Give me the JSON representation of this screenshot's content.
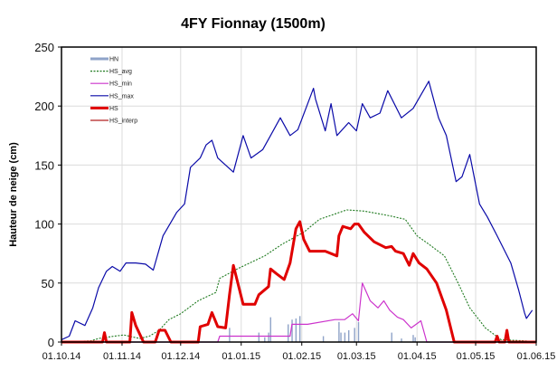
{
  "chart_data": {
    "type": "line",
    "title": "4FY Fionnay (1500m)",
    "xlabel": "",
    "ylabel": "Hauteur de neige (cm)",
    "xlim": [
      "01.10.14",
      "01.06.15"
    ],
    "ylim": [
      0,
      250
    ],
    "x_ticks": [
      "01.10.14",
      "01.11.14",
      "01.12.14",
      "01.01.15",
      "01.02.15",
      "01.03.15",
      "01.04.15",
      "01.05.15",
      "01.06.15"
    ],
    "y_ticks": [
      0,
      50,
      100,
      150,
      200,
      250
    ],
    "grid": true,
    "legend_position": "top-left",
    "series": [
      {
        "name": "HN",
        "style": "bar",
        "color": "#8fa3c8",
        "points": [
          [
            "26.12.14",
            12
          ],
          [
            "10.01.15",
            8
          ],
          [
            "13.01.15",
            4
          ],
          [
            "15.01.15",
            8
          ],
          [
            "16.01.15",
            21
          ],
          [
            "25.01.15",
            15
          ],
          [
            "27.01.15",
            19
          ],
          [
            "29.01.15",
            20
          ],
          [
            "31.01.15",
            22
          ],
          [
            "12.02.15",
            5
          ],
          [
            "20.02.15",
            17
          ],
          [
            "21.02.15",
            8
          ],
          [
            "23.02.15",
            8
          ],
          [
            "25.02.15",
            10
          ],
          [
            "28.02.15",
            12
          ],
          [
            "02.03.15",
            17
          ],
          [
            "19.03.15",
            8
          ],
          [
            "24.03.15",
            3
          ],
          [
            "30.03.15",
            6
          ],
          [
            "31.03.15",
            4
          ]
        ]
      },
      {
        "name": "HS_avg",
        "style": "dotted",
        "color": "#1f7a1f",
        "points": [
          [
            "01.10.14",
            0
          ],
          [
            "16.10.14",
            1
          ],
          [
            "20.10.14",
            3
          ],
          [
            "28.10.14",
            5
          ],
          [
            "02.11.14",
            6
          ],
          [
            "10.11.14",
            3
          ],
          [
            "15.11.14",
            5
          ],
          [
            "20.11.14",
            10
          ],
          [
            "25.11.14",
            19
          ],
          [
            "01.12.14",
            24
          ],
          [
            "10.12.14",
            35
          ],
          [
            "19.12.14",
            42
          ],
          [
            "21.12.14",
            54
          ],
          [
            "30.12.14",
            62
          ],
          [
            "13.01.15",
            73
          ],
          [
            "22.01.15",
            83
          ],
          [
            "02.02.15",
            93
          ],
          [
            "10.02.15",
            104
          ],
          [
            "24.02.15",
            112
          ],
          [
            "05.03.15",
            111
          ],
          [
            "18.03.15",
            107
          ],
          [
            "26.03.15",
            104
          ],
          [
            "01.04.15",
            90
          ],
          [
            "07.04.15",
            83
          ],
          [
            "15.04.15",
            73
          ],
          [
            "22.04.15",
            50
          ],
          [
            "28.04.15",
            29
          ],
          [
            "06.05.15",
            12
          ],
          [
            "14.05.15",
            2
          ],
          [
            "26.05.15",
            1
          ],
          [
            "01.06.15",
            0
          ]
        ]
      },
      {
        "name": "HS_min",
        "style": "line",
        "color": "#cc33cc",
        "points": [
          [
            "01.10.14",
            0
          ],
          [
            "20.12.14",
            0
          ],
          [
            "21.12.14",
            5
          ],
          [
            "26.01.15",
            5
          ],
          [
            "27.01.15",
            15
          ],
          [
            "04.02.15",
            15
          ],
          [
            "18.02.15",
            19
          ],
          [
            "23.02.15",
            19
          ],
          [
            "27.02.15",
            24
          ],
          [
            "02.03.15",
            18
          ],
          [
            "04.03.15",
            50
          ],
          [
            "08.03.15",
            35
          ],
          [
            "12.03.15",
            29
          ],
          [
            "15.03.15",
            35
          ],
          [
            "18.03.15",
            27
          ],
          [
            "22.03.15",
            21
          ],
          [
            "25.03.15",
            19
          ],
          [
            "29.03.15",
            12
          ],
          [
            "03.04.15",
            18
          ],
          [
            "06.04.15",
            0
          ],
          [
            "01.06.15",
            0
          ]
        ]
      },
      {
        "name": "HS_max",
        "style": "line",
        "color": "#0a0aa8",
        "points": [
          [
            "01.10.14",
            2
          ],
          [
            "05.10.14",
            5
          ],
          [
            "08.10.14",
            18
          ],
          [
            "13.10.14",
            14
          ],
          [
            "17.10.14",
            29
          ],
          [
            "20.10.14",
            46
          ],
          [
            "24.10.14",
            60
          ],
          [
            "27.10.14",
            64
          ],
          [
            "31.10.14",
            60
          ],
          [
            "03.11.14",
            67
          ],
          [
            "08.11.14",
            67
          ],
          [
            "13.11.14",
            66
          ],
          [
            "17.11.14",
            61
          ],
          [
            "22.11.14",
            90
          ],
          [
            "29.11.14",
            110
          ],
          [
            "03.12.14",
            117
          ],
          [
            "06.12.14",
            148
          ],
          [
            "11.12.14",
            156
          ],
          [
            "14.12.14",
            167
          ],
          [
            "17.12.14",
            171
          ],
          [
            "20.12.14",
            156
          ],
          [
            "28.12.14",
            144
          ],
          [
            "02.01.15",
            175
          ],
          [
            "06.01.15",
            156
          ],
          [
            "12.01.15",
            163
          ],
          [
            "16.01.15",
            175
          ],
          [
            "21.01.15",
            190
          ],
          [
            "26.01.15",
            175
          ],
          [
            "30.01.15",
            180
          ],
          [
            "07.02.15",
            215
          ],
          [
            "08.02.15",
            206
          ],
          [
            "13.02.15",
            179
          ],
          [
            "16.02.15",
            202
          ],
          [
            "19.02.15",
            175
          ],
          [
            "25.02.15",
            186
          ],
          [
            "01.03.15",
            179
          ],
          [
            "04.03.15",
            202
          ],
          [
            "08.03.15",
            190
          ],
          [
            "13.03.15",
            194
          ],
          [
            "17.03.15",
            213
          ],
          [
            "24.03.15",
            190
          ],
          [
            "30.03.15",
            198
          ],
          [
            "07.04.15",
            221
          ],
          [
            "12.04.15",
            190
          ],
          [
            "16.04.15",
            175
          ],
          [
            "21.04.15",
            136
          ],
          [
            "24.04.15",
            140
          ],
          [
            "28.04.15",
            159
          ],
          [
            "03.05.15",
            117
          ],
          [
            "07.05.15",
            106
          ],
          [
            "12.05.15",
            90
          ],
          [
            "19.05.15",
            67
          ],
          [
            "23.05.15",
            44
          ],
          [
            "26.05.15",
            25
          ],
          [
            "27.05.15",
            20
          ],
          [
            "30.05.15",
            27
          ]
        ]
      },
      {
        "name": "HS",
        "style": "thick",
        "color": "#e00000",
        "points": [
          [
            "01.10.14",
            0
          ],
          [
            "22.10.14",
            0
          ],
          [
            "23.10.14",
            8
          ],
          [
            "24.10.14",
            0
          ],
          [
            "05.11.14",
            0
          ],
          [
            "06.11.14",
            25
          ],
          [
            "08.11.14",
            14
          ],
          [
            "12.11.14",
            0
          ],
          [
            "18.11.14",
            0
          ],
          [
            "20.11.14",
            10
          ],
          [
            "23.11.14",
            10
          ],
          [
            "26.11.14",
            0
          ],
          [
            "10.12.14",
            0
          ],
          [
            "11.12.14",
            13
          ],
          [
            "15.12.14",
            15
          ],
          [
            "17.12.14",
            25
          ],
          [
            "20.12.14",
            13
          ],
          [
            "24.12.14",
            12
          ],
          [
            "26.12.14",
            40
          ],
          [
            "28.12.14",
            65
          ],
          [
            "02.01.15",
            32
          ],
          [
            "08.01.15",
            32
          ],
          [
            "10.01.15",
            40
          ],
          [
            "15.01.15",
            47
          ],
          [
            "16.01.15",
            62
          ],
          [
            "19.01.15",
            58
          ],
          [
            "23.01.15",
            53
          ],
          [
            "26.01.15",
            67
          ],
          [
            "29.01.15",
            96
          ],
          [
            "31.01.15",
            102
          ],
          [
            "02.02.15",
            87
          ],
          [
            "05.02.15",
            77
          ],
          [
            "10.02.15",
            77
          ],
          [
            "13.02.15",
            77
          ],
          [
            "19.02.15",
            73
          ],
          [
            "20.02.15",
            90
          ],
          [
            "22.02.15",
            98
          ],
          [
            "26.02.15",
            96
          ],
          [
            "28.02.15",
            100
          ],
          [
            "02.03.15",
            100
          ],
          [
            "05.03.15",
            93
          ],
          [
            "10.03.15",
            85
          ],
          [
            "16.03.15",
            80
          ],
          [
            "19.03.15",
            81
          ],
          [
            "21.03.15",
            77
          ],
          [
            "25.03.15",
            75
          ],
          [
            "28.03.15",
            65
          ],
          [
            "30.03.15",
            75
          ],
          [
            "02.04.15",
            67
          ],
          [
            "06.04.15",
            62
          ],
          [
            "11.04.15",
            50
          ],
          [
            "16.04.15",
            27
          ],
          [
            "20.04.15",
            0
          ],
          [
            "11.05.15",
            0
          ],
          [
            "12.05.15",
            5
          ],
          [
            "13.05.15",
            0
          ],
          [
            "16.05.15",
            0
          ],
          [
            "17.05.15",
            10
          ],
          [
            "18.05.15",
            0
          ],
          [
            "01.06.15",
            0
          ]
        ]
      },
      {
        "name": "HS_interp",
        "style": "line",
        "color": "#b22222",
        "points": []
      }
    ]
  }
}
